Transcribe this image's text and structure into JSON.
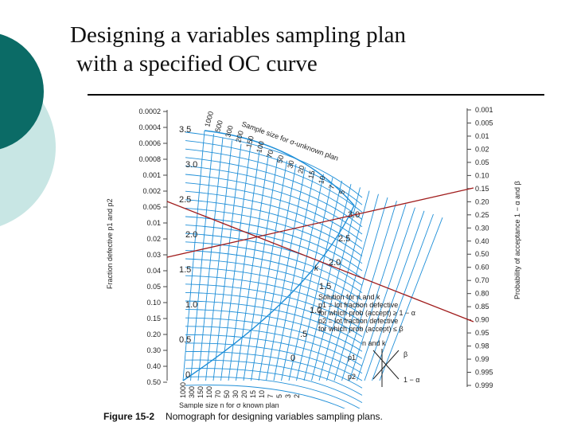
{
  "slide": {
    "title_line1": "Designing a variables sampling plan",
    "title_line2": "with a specified OC curve",
    "theme": {
      "dark": "#0b6b66",
      "light": "#c8e6e4",
      "grid": "#1f8fd8",
      "line": "#a01c1c"
    }
  },
  "nomograph": {
    "left_axis_title": "Fraction defective p1 and p2",
    "left_ticks": [
      "0.0002",
      "0.0004",
      "0.0006",
      "0.0008",
      "0.001",
      "0.002",
      "0.005",
      "0.01",
      "0.02",
      "0.03",
      "0.04",
      "0.05",
      "0.10",
      "0.15",
      "0.20",
      "0.30",
      "0.40",
      "0.50"
    ],
    "right_axis_title": "Probability of acceptance 1 − α and β",
    "right_ticks": [
      "0.001",
      "0.005",
      "0.01",
      "0.02",
      "0.05",
      "0.10",
      "0.15",
      "0.20",
      "0.25",
      "0.30",
      "0.40",
      "0.50",
      "0.60",
      "0.70",
      "0.80",
      "0.85",
      "0.90",
      "0.95",
      "0.98",
      "0.99",
      "0.995",
      "0.999"
    ],
    "k_values": [
      "3.5",
      "3.0",
      "2.5",
      "2.0",
      "1.5",
      "1.0",
      "0.5",
      "0"
    ],
    "k_values_right": [
      "3.0",
      "2.5",
      "2.0",
      "1.5",
      "1.0",
      ".5",
      "0"
    ],
    "unknown_n_labels": [
      "1000",
      "500",
      "300",
      "200",
      "150",
      "100",
      "70",
      "50",
      "30",
      "20",
      "15",
      "10",
      "7",
      "5"
    ],
    "known_n_labels": [
      "1000",
      "300",
      "150",
      "100",
      "70",
      "50",
      "30",
      "20",
      "15",
      "10",
      "7",
      "5",
      "3",
      "2"
    ],
    "unknown_plan_title": "Sample size for σ-unknown plan",
    "known_plan_title": "Sample size n for σ known plan",
    "k_symbol": "k",
    "solution_lines": [
      "Solution for n and k",
      "p1 = lot fraction defective",
      "for which prob (accept) ≥ 1 − α",
      "p2 = lot fraction defective",
      "for which prob (accept) ≤ β"
    ],
    "inset": {
      "title": "n and k",
      "p1": "p1",
      "p2": "p2",
      "beta": "β",
      "one_minus_alpha": "1 − α"
    }
  },
  "caption": {
    "label": "Figure 15-2",
    "text": "Nomograph for designing variables sampling plans."
  }
}
